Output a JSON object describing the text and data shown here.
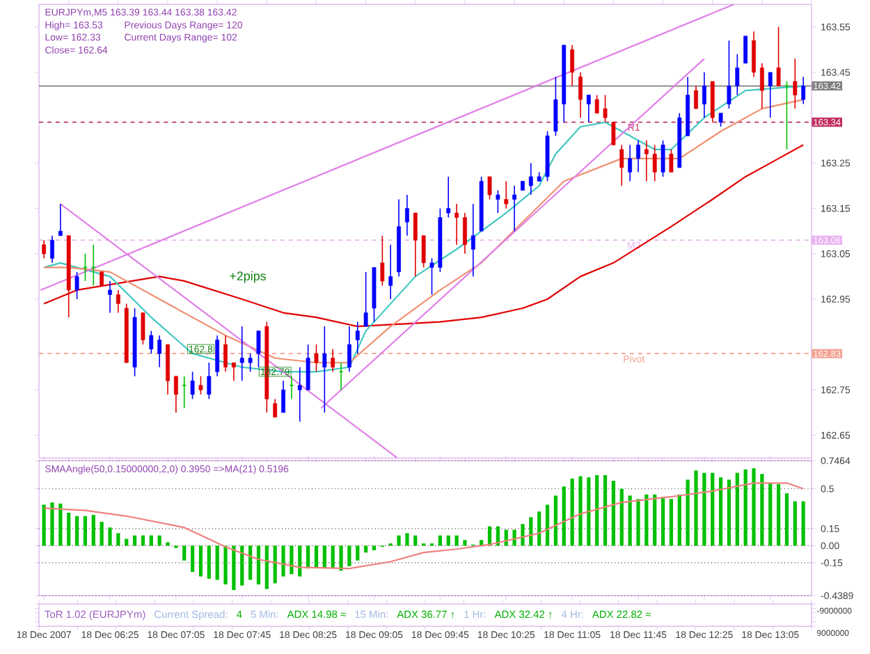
{
  "chart_data": [
    {
      "type": "candlestick",
      "title": "EURJPYm,M5  163.39 163.44 163.38 163.42",
      "tick_labels": "y",
      "xlim": [
        "2007-12-18T05:42",
        "2007-12-18T13:30"
      ],
      "ylim": [
        162.6,
        163.6
      ],
      "yticks": [
        162.65,
        162.75,
        162.95,
        163.05,
        163.15,
        163.25,
        163.45,
        163.55
      ],
      "annotations": [
        "High= 163.53",
        "Previous Days Range= 120",
        "Low= 162.33",
        "Current Days Range= 102",
        "Close= 162.64",
        "+2pips",
        {
          "text": "162.8",
          "x": "2007-12-18T07:20",
          "y": 162.84
        },
        {
          "text": "162.79",
          "x": "2007-12-18T08:05",
          "y": 162.79
        },
        {
          "text": "163.42",
          "y": 163.42
        },
        {
          "text": "163.34",
          "y": 163.34
        },
        {
          "text": "163.08",
          "y": 163.08
        },
        {
          "text": "162.83",
          "y": 162.83
        }
      ],
      "ref_lines": [
        {
          "axis": "y",
          "value": 163.42,
          "color": "#808080",
          "line_style": "solid"
        },
        {
          "axis": "y",
          "value": 163.34,
          "label": "R1",
          "color": "#c03060",
          "line_style": "dashed"
        },
        {
          "axis": "y",
          "value": 163.08,
          "label": "M3",
          "color": "#e8b0f0",
          "line_style": "dashed"
        },
        {
          "axis": "y",
          "value": 162.83,
          "label": "Pivot",
          "color": "#f4a090",
          "line_style": "dashed"
        }
      ],
      "series": [
        {
          "type": "line",
          "color": "#e00000",
          "x": [
            "2007-12-18T05:45",
            "2007-12-18T06:05",
            "2007-12-18T06:55",
            "2007-12-18T07:10",
            "2007-12-18T07:45",
            "2007-12-18T08:10",
            "2007-12-18T08:30",
            "2007-12-18T08:55",
            "2007-12-18T09:45",
            "2007-12-18T10:10",
            "2007-12-18T10:35",
            "2007-12-18T10:50",
            "2007-12-18T11:10",
            "2007-12-18T11:30",
            "2007-12-18T12:05",
            "2007-12-18T12:30",
            "2007-12-18T12:50",
            "2007-12-18T13:10",
            "2007-12-18T13:25"
          ],
          "values": [
            162.94,
            162.97,
            163.0,
            162.99,
            162.95,
            162.92,
            162.91,
            162.89,
            162.9,
            162.91,
            162.93,
            162.95,
            163.0,
            163.03,
            163.11,
            163.17,
            163.22,
            163.26,
            163.29
          ]
        },
        {
          "type": "line",
          "color": "#40c8c0",
          "x": [
            "2007-12-18T05:45",
            "2007-12-18T05:55",
            "2007-12-18T06:25",
            "2007-12-18T06:50",
            "2007-12-18T07:15",
            "2007-12-18T07:45",
            "2007-12-18T08:10",
            "2007-12-18T08:30",
            "2007-12-18T08:50",
            "2007-12-18T09:00",
            "2007-12-18T09:30",
            "2007-12-18T09:55",
            "2007-12-18T10:25",
            "2007-12-18T10:45",
            "2007-12-18T10:55",
            "2007-12-18T11:10",
            "2007-12-18T11:25",
            "2007-12-18T11:55",
            "2007-12-18T12:05",
            "2007-12-18T12:25",
            "2007-12-18T12:50",
            "2007-12-18T13:25"
          ],
          "values": [
            163.02,
            163.03,
            163.0,
            162.91,
            162.83,
            162.8,
            162.79,
            162.79,
            162.8,
            162.88,
            163.0,
            163.06,
            163.14,
            163.2,
            163.27,
            163.33,
            163.34,
            163.28,
            163.28,
            163.35,
            163.41,
            163.42
          ]
        },
        {
          "type": "line",
          "color": "#f09070",
          "x": [
            "2007-12-18T05:45",
            "2007-12-18T06:00",
            "2007-12-18T06:25",
            "2007-12-18T07:00",
            "2007-12-18T07:35",
            "2007-12-18T08:05",
            "2007-12-18T08:30",
            "2007-12-18T08:50",
            "2007-12-18T09:15",
            "2007-12-18T09:45",
            "2007-12-18T10:10",
            "2007-12-18T10:35",
            "2007-12-18T11:00",
            "2007-12-18T11:35",
            "2007-12-18T12:10",
            "2007-12-18T12:35",
            "2007-12-18T13:00",
            "2007-12-18T13:25"
          ],
          "values": [
            163.02,
            163.02,
            163.01,
            162.94,
            162.87,
            162.82,
            162.81,
            162.81,
            162.89,
            162.97,
            163.03,
            163.12,
            163.21,
            163.26,
            163.26,
            163.32,
            163.37,
            163.39
          ]
        },
        {
          "type": "line",
          "color": "#e080e8",
          "x": [
            "2007-12-18T05:43",
            "2007-12-18T12:43"
          ],
          "values": [
            162.97,
            163.6
          ]
        },
        {
          "type": "line",
          "color": "#e080e8",
          "x": [
            "2007-12-18T05:55",
            "2007-12-18T09:19"
          ],
          "values": [
            163.16,
            162.6
          ]
        },
        {
          "type": "line",
          "color": "#e080e8",
          "x": [
            "2007-12-18T08:33",
            "2007-12-18T12:25"
          ],
          "values": [
            162.71,
            163.48
          ]
        },
        {
          "type": "candlestick",
          "x": [
            "2007-12-18T05:45",
            "2007-12-18T05:50",
            "2007-12-18T05:55",
            "2007-12-18T06:00",
            "2007-12-18T06:05",
            "2007-12-18T06:10",
            "2007-12-18T06:15",
            "2007-12-18T06:20",
            "2007-12-18T06:25",
            "2007-12-18T06:30",
            "2007-12-18T06:35",
            "2007-12-18T06:40",
            "2007-12-18T06:45",
            "2007-12-18T06:50",
            "2007-12-18T06:55",
            "2007-12-18T07:00",
            "2007-12-18T07:05",
            "2007-12-18T07:10",
            "2007-12-18T07:15",
            "2007-12-18T07:20",
            "2007-12-18T07:25",
            "2007-12-18T07:30",
            "2007-12-18T07:35",
            "2007-12-18T07:40",
            "2007-12-18T07:45",
            "2007-12-18T07:50",
            "2007-12-18T07:55",
            "2007-12-18T08:00",
            "2007-12-18T08:05",
            "2007-12-18T08:10",
            "2007-12-18T08:15",
            "2007-12-18T08:20",
            "2007-12-18T08:25",
            "2007-12-18T08:30",
            "2007-12-18T08:35",
            "2007-12-18T08:40",
            "2007-12-18T08:45",
            "2007-12-18T08:50",
            "2007-12-18T08:55",
            "2007-12-18T09:00",
            "2007-12-18T09:05",
            "2007-12-18T09:10",
            "2007-12-18T09:15",
            "2007-12-18T09:20",
            "2007-12-18T09:25",
            "2007-12-18T09:30",
            "2007-12-18T09:35",
            "2007-12-18T09:40",
            "2007-12-18T09:45",
            "2007-12-18T09:50",
            "2007-12-18T09:55",
            "2007-12-18T10:00",
            "2007-12-18T10:05",
            "2007-12-18T10:10",
            "2007-12-18T10:15",
            "2007-12-18T10:20",
            "2007-12-18T10:25",
            "2007-12-18T10:30",
            "2007-12-18T10:35",
            "2007-12-18T10:40",
            "2007-12-18T10:45",
            "2007-12-18T10:50",
            "2007-12-18T10:55",
            "2007-12-18T11:00",
            "2007-12-18T11:05",
            "2007-12-18T11:10",
            "2007-12-18T11:15",
            "2007-12-18T11:20",
            "2007-12-18T11:25",
            "2007-12-18T11:30",
            "2007-12-18T11:35",
            "2007-12-18T11:40",
            "2007-12-18T11:45",
            "2007-12-18T11:50",
            "2007-12-18T11:55",
            "2007-12-18T12:00",
            "2007-12-18T12:05",
            "2007-12-18T12:10",
            "2007-12-18T12:15",
            "2007-12-18T12:20",
            "2007-12-18T12:25",
            "2007-12-18T12:30",
            "2007-12-18T12:35",
            "2007-12-18T12:40",
            "2007-12-18T12:45",
            "2007-12-18T12:50",
            "2007-12-18T12:55",
            "2007-12-18T13:00",
            "2007-12-18T13:05",
            "2007-12-18T13:10",
            "2007-12-18T13:15",
            "2007-12-18T13:20",
            "2007-12-18T13:25"
          ],
          "ohlc": [
            [
              163.07,
              163.08,
              163.04,
              163.05
            ],
            [
              163.04,
              163.09,
              163.03,
              163.08
            ],
            [
              163.09,
              163.16,
              163.09,
              163.1
            ],
            [
              163.09,
              163.09,
              162.91,
              162.97
            ],
            [
              162.97,
              163.01,
              162.95,
              163.0
            ],
            [
              163.02,
              163.05,
              162.99,
              163.02
            ],
            [
              163.02,
              163.07,
              162.98,
              163.02
            ],
            [
              163.01,
              163.01,
              162.98,
              162.98
            ],
            [
              162.96,
              162.99,
              162.92,
              162.97
            ],
            [
              162.96,
              162.97,
              162.92,
              162.94
            ],
            [
              162.93,
              162.94,
              162.81,
              162.81
            ],
            [
              162.8,
              162.93,
              162.78,
              162.91
            ],
            [
              162.92,
              162.92,
              162.85,
              162.86
            ],
            [
              162.84,
              162.88,
              162.83,
              162.87
            ],
            [
              162.83,
              162.87,
              162.8,
              162.86
            ],
            [
              162.85,
              162.85,
              162.74,
              162.77
            ],
            [
              162.78,
              162.78,
              162.7,
              162.74
            ],
            [
              162.76,
              162.78,
              162.71,
              162.76
            ],
            [
              162.74,
              162.79,
              162.73,
              162.77
            ],
            [
              162.76,
              162.78,
              162.74,
              162.75
            ],
            [
              162.74,
              162.81,
              162.73,
              162.78
            ],
            [
              162.79,
              162.87,
              162.78,
              162.86
            ],
            [
              162.85,
              162.87,
              162.79,
              162.8
            ],
            [
              162.81,
              162.81,
              162.77,
              162.8
            ],
            [
              162.81,
              162.89,
              162.77,
              162.82
            ],
            [
              162.81,
              162.83,
              162.79,
              162.82
            ],
            [
              162.83,
              162.88,
              162.8,
              162.88
            ],
            [
              162.89,
              162.9,
              162.7,
              162.73
            ],
            [
              162.72,
              162.73,
              162.69,
              162.69
            ],
            [
              162.7,
              162.77,
              162.7,
              162.75
            ],
            [
              162.76,
              162.78,
              162.73,
              162.76
            ],
            [
              162.75,
              162.8,
              162.68,
              162.76
            ],
            [
              162.75,
              162.85,
              162.75,
              162.82
            ],
            [
              162.83,
              162.85,
              162.79,
              162.81
            ],
            [
              162.8,
              162.89,
              162.7,
              162.83
            ],
            [
              162.82,
              162.84,
              162.79,
              162.8
            ],
            [
              162.79,
              162.81,
              162.75,
              162.79
            ],
            [
              162.8,
              162.89,
              162.79,
              162.85
            ],
            [
              162.86,
              162.9,
              162.83,
              162.88
            ],
            [
              162.89,
              163.01,
              162.89,
              162.92
            ],
            [
              162.93,
              163.02,
              162.9,
              163.02
            ],
            [
              163.03,
              163.09,
              162.98,
              162.99
            ],
            [
              162.98,
              163.07,
              162.95,
              163.0
            ],
            [
              163.01,
              163.17,
              163.0,
              163.11
            ],
            [
              163.12,
              163.18,
              163.09,
              163.15
            ],
            [
              163.14,
              163.14,
              163.0,
              163.08
            ],
            [
              163.09,
              163.09,
              163.02,
              163.03
            ],
            [
              163.02,
              163.04,
              162.96,
              163.03
            ],
            [
              163.02,
              163.15,
              163.01,
              163.13
            ],
            [
              163.14,
              163.22,
              163.13,
              163.15
            ],
            [
              163.14,
              163.16,
              163.07,
              163.13
            ],
            [
              163.13,
              163.14,
              163.05,
              163.07
            ],
            [
              163.06,
              163.16,
              163.0,
              163.09
            ],
            [
              163.1,
              163.22,
              163.1,
              163.21
            ],
            [
              163.22,
              163.22,
              163.17,
              163.18
            ],
            [
              163.17,
              163.19,
              163.14,
              163.18
            ],
            [
              163.17,
              163.21,
              163.15,
              163.16
            ],
            [
              163.17,
              163.2,
              163.1,
              163.18
            ],
            [
              163.19,
              163.21,
              163.19,
              163.21
            ],
            [
              163.2,
              163.25,
              163.18,
              163.22
            ],
            [
              163.21,
              163.23,
              163.21,
              163.22
            ],
            [
              163.22,
              163.32,
              163.21,
              163.31
            ],
            [
              163.32,
              163.44,
              163.31,
              163.39
            ],
            [
              163.38,
              163.51,
              163.34,
              163.51
            ],
            [
              163.5,
              163.51,
              163.42,
              163.45
            ],
            [
              163.44,
              163.45,
              163.35,
              163.39
            ],
            [
              163.38,
              163.4,
              163.34,
              163.4
            ],
            [
              163.39,
              163.4,
              163.36,
              163.36
            ],
            [
              163.37,
              163.4,
              163.34,
              163.35
            ],
            [
              163.34,
              163.34,
              163.29,
              163.29
            ],
            [
              163.28,
              163.29,
              163.2,
              163.24
            ],
            [
              163.23,
              163.29,
              163.21,
              163.26
            ],
            [
              163.26,
              163.3,
              163.23,
              163.29
            ],
            [
              163.28,
              163.3,
              163.21,
              163.27
            ],
            [
              163.27,
              163.29,
              163.21,
              163.23
            ],
            [
              163.23,
              163.3,
              163.22,
              163.29
            ],
            [
              163.27,
              163.28,
              163.23,
              163.23
            ],
            [
              163.24,
              163.36,
              163.24,
              163.35
            ],
            [
              163.31,
              163.44,
              163.31,
              163.4
            ],
            [
              163.41,
              163.42,
              163.37,
              163.37
            ],
            [
              163.38,
              163.45,
              163.35,
              163.42
            ],
            [
              163.43,
              163.43,
              163.34,
              163.35
            ],
            [
              163.34,
              163.36,
              163.33,
              163.36
            ],
            [
              163.38,
              163.52,
              163.37,
              163.42
            ],
            [
              163.42,
              163.49,
              163.4,
              163.46
            ],
            [
              163.47,
              163.53,
              163.47,
              163.53
            ],
            [
              163.52,
              163.54,
              163.44,
              163.45
            ],
            [
              163.46,
              163.47,
              163.37,
              163.41
            ],
            [
              163.42,
              163.45,
              163.35,
              163.45
            ],
            [
              163.46,
              163.55,
              163.42,
              163.42
            ],
            [
              163.42,
              163.43,
              163.28,
              163.42
            ],
            [
              163.43,
              163.48,
              163.37,
              163.4
            ],
            [
              163.39,
              163.44,
              163.38,
              163.42
            ]
          ],
          "colors": [
            "#e00000",
            "#0000ff",
            "#0000ff",
            "#e00000",
            "#0000ff",
            "#00c000",
            "#00c000",
            "#e00000",
            "#0000ff",
            "#e00000",
            "#e00000",
            "#0000ff",
            "#e00000",
            "#0000ff",
            "#0000ff",
            "#e00000",
            "#e00000",
            "#00c000",
            "#0000ff",
            "#e00000",
            "#0000ff",
            "#0000ff",
            "#e00000",
            "#e00000",
            "#0000ff",
            "#0000ff",
            "#0000ff",
            "#e00000",
            "#e00000",
            "#0000ff",
            "#00c000",
            "#0000ff",
            "#0000ff",
            "#e00000",
            "#0000ff",
            "#e00000",
            "#00c000",
            "#0000ff",
            "#0000ff",
            "#0000ff",
            "#0000ff",
            "#e00000",
            "#0000ff",
            "#0000ff",
            "#0000ff",
            "#e00000",
            "#e00000",
            "#0000ff",
            "#0000ff",
            "#0000ff",
            "#e00000",
            "#e00000",
            "#0000ff",
            "#0000ff",
            "#e00000",
            "#0000ff",
            "#e00000",
            "#0000ff",
            "#0000ff",
            "#0000ff",
            "#0000ff",
            "#0000ff",
            "#0000ff",
            "#0000ff",
            "#e00000",
            "#e00000",
            "#0000ff",
            "#e00000",
            "#e00000",
            "#e00000",
            "#e00000",
            "#0000ff",
            "#0000ff",
            "#e00000",
            "#e00000",
            "#0000ff",
            "#e00000",
            "#0000ff",
            "#0000ff",
            "#e00000",
            "#0000ff",
            "#e00000",
            "#0000ff",
            "#0000ff",
            "#0000ff",
            "#0000ff",
            "#e00000",
            "#e00000",
            "#0000ff",
            "#e00000",
            "#00c000",
            "#e00000",
            "#0000ff"
          ]
        }
      ]
    },
    {
      "type": "bar",
      "title": "SMAAngle(50,0.15000000,2,0) 0.3950  =>MA(21) 0.5196",
      "grid": "y",
      "xlim": [
        "2007-12-18T05:42",
        "2007-12-18T13:30"
      ],
      "ylim": [
        -0.4389,
        0.7464
      ],
      "xticks": [
        {
          "value": "2007-12-18T05:45",
          "label": "18 Dec 2007"
        },
        {
          "value": "2007-12-18T06:25",
          "label": "18 Dec 06:25"
        },
        {
          "value": "2007-12-18T07:05",
          "label": "18 Dec 07:05"
        },
        {
          "value": "2007-12-18T07:45",
          "label": "18 Dec 07:45"
        },
        {
          "value": "2007-12-18T08:25",
          "label": "18 Dec 08:25"
        },
        {
          "value": "2007-12-18T09:05",
          "label": "18 Dec 09:05"
        },
        {
          "value": "2007-12-18T09:45",
          "label": "18 Dec 09:45"
        },
        {
          "value": "2007-12-18T10:25",
          "label": "18 Dec 10:25"
        },
        {
          "value": "2007-12-18T11:05",
          "label": "18 Dec 11:05"
        },
        {
          "value": "2007-12-18T11:45",
          "label": "18 Dec 11:45"
        },
        {
          "value": "2007-12-18T12:25",
          "label": "18 Dec 12:25"
        },
        {
          "value": "2007-12-18T13:05",
          "label": "18 Dec 13:05"
        }
      ],
      "yticks": [
        -0.4389,
        -0.15,
        {
          "value": 0,
          "label": "0.00"
        },
        0.15,
        0.5,
        0.7464
      ],
      "series": [
        {
          "type": "bar",
          "color": "#00c000",
          "x": [
            "2007-12-18T05:45",
            "2007-12-18T05:50",
            "2007-12-18T05:55",
            "2007-12-18T06:00",
            "2007-12-18T06:05",
            "2007-12-18T06:10",
            "2007-12-18T06:15",
            "2007-12-18T06:20",
            "2007-12-18T06:25",
            "2007-12-18T06:30",
            "2007-12-18T06:35",
            "2007-12-18T06:40",
            "2007-12-18T06:45",
            "2007-12-18T06:50",
            "2007-12-18T06:55",
            "2007-12-18T07:00",
            "2007-12-18T07:05",
            "2007-12-18T07:10",
            "2007-12-18T07:15",
            "2007-12-18T07:20",
            "2007-12-18T07:25",
            "2007-12-18T07:30",
            "2007-12-18T07:35",
            "2007-12-18T07:40",
            "2007-12-18T07:45",
            "2007-12-18T07:50",
            "2007-12-18T07:55",
            "2007-12-18T08:00",
            "2007-12-18T08:05",
            "2007-12-18T08:10",
            "2007-12-18T08:15",
            "2007-12-18T08:20",
            "2007-12-18T08:25",
            "2007-12-18T08:30",
            "2007-12-18T08:35",
            "2007-12-18T08:40",
            "2007-12-18T08:45",
            "2007-12-18T08:50",
            "2007-12-18T08:55",
            "2007-12-18T09:00",
            "2007-12-18T09:05",
            "2007-12-18T09:10",
            "2007-12-18T09:15",
            "2007-12-18T09:20",
            "2007-12-18T09:25",
            "2007-12-18T09:30",
            "2007-12-18T09:35",
            "2007-12-18T09:40",
            "2007-12-18T09:45",
            "2007-12-18T09:50",
            "2007-12-18T09:55",
            "2007-12-18T10:00",
            "2007-12-18T10:05",
            "2007-12-18T10:10",
            "2007-12-18T10:15",
            "2007-12-18T10:20",
            "2007-12-18T10:25",
            "2007-12-18T10:30",
            "2007-12-18T10:35",
            "2007-12-18T10:40",
            "2007-12-18T10:45",
            "2007-12-18T10:50",
            "2007-12-18T10:55",
            "2007-12-18T11:00",
            "2007-12-18T11:05",
            "2007-12-18T11:10",
            "2007-12-18T11:15",
            "2007-12-18T11:20",
            "2007-12-18T11:25",
            "2007-12-18T11:30",
            "2007-12-18T11:35",
            "2007-12-18T11:40",
            "2007-12-18T11:45",
            "2007-12-18T11:50",
            "2007-12-18T11:55",
            "2007-12-18T12:00",
            "2007-12-18T12:05",
            "2007-12-18T12:10",
            "2007-12-18T12:15",
            "2007-12-18T12:20",
            "2007-12-18T12:25",
            "2007-12-18T12:30",
            "2007-12-18T12:35",
            "2007-12-18T12:40",
            "2007-12-18T12:45",
            "2007-12-18T12:50",
            "2007-12-18T12:55",
            "2007-12-18T13:00",
            "2007-12-18T13:05",
            "2007-12-18T13:10",
            "2007-12-18T13:15",
            "2007-12-18T13:20",
            "2007-12-18T13:25"
          ],
          "values": [
            0.36,
            0.38,
            0.37,
            0.29,
            0.26,
            0.26,
            0.27,
            0.21,
            0.16,
            0.11,
            0.06,
            0.09,
            0.09,
            0.09,
            0.09,
            0.03,
            -0.02,
            -0.13,
            -0.23,
            -0.27,
            -0.29,
            -0.3,
            -0.34,
            -0.39,
            -0.35,
            -0.3,
            -0.34,
            -0.38,
            -0.33,
            -0.27,
            -0.25,
            -0.27,
            -0.2,
            -0.2,
            -0.2,
            -0.2,
            -0.22,
            -0.18,
            -0.13,
            -0.06,
            -0.04,
            -0.01,
            0.02,
            0.09,
            0.11,
            0.09,
            0.02,
            0.02,
            0.09,
            0.09,
            0.09,
            0.05,
            0.01,
            0.05,
            0.17,
            0.17,
            0.14,
            0.14,
            0.19,
            0.25,
            0.3,
            0.36,
            0.44,
            0.52,
            0.59,
            0.61,
            0.6,
            0.62,
            0.62,
            0.57,
            0.5,
            0.44,
            0.41,
            0.45,
            0.45,
            0.43,
            0.41,
            0.45,
            0.58,
            0.66,
            0.64,
            0.64,
            0.6,
            0.58,
            0.64,
            0.67,
            0.68,
            0.63,
            0.55,
            0.54,
            0.46,
            0.39,
            0.39
          ]
        },
        {
          "type": "line",
          "color": "#f08080",
          "x": [
            "2007-12-18T05:45",
            "2007-12-18T06:10",
            "2007-12-18T06:35",
            "2007-12-18T07:10",
            "2007-12-18T07:35",
            "2007-12-18T07:55",
            "2007-12-18T08:20",
            "2007-12-18T08:50",
            "2007-12-18T09:15",
            "2007-12-18T09:35",
            "2007-12-18T09:55",
            "2007-12-18T10:15",
            "2007-12-18T10:45",
            "2007-12-18T11:10",
            "2007-12-18T11:35",
            "2007-12-18T12:05",
            "2007-12-18T12:30",
            "2007-12-18T12:55",
            "2007-12-18T13:15",
            "2007-12-18T13:25"
          ],
          "values": [
            0.33,
            0.31,
            0.26,
            0.16,
            -0.01,
            -0.12,
            -0.19,
            -0.2,
            -0.14,
            -0.06,
            -0.03,
            0.01,
            0.11,
            0.28,
            0.38,
            0.43,
            0.48,
            0.55,
            0.55,
            0.5
          ]
        }
      ]
    },
    {
      "type": "other",
      "annotations": [
        "ToR 1.02 (EURJPYm)",
        "Current Spread:",
        "4",
        "5 Min:",
        "ADX 14.98 ≈",
        "15 Min:",
        "ADX 36.77 ↑",
        "1 Hr:",
        "ADX 32.42 ↑",
        "4 Hr:",
        "ADX 22.82 ≈",
        "-9000000",
        "9000000"
      ]
    }
  ]
}
